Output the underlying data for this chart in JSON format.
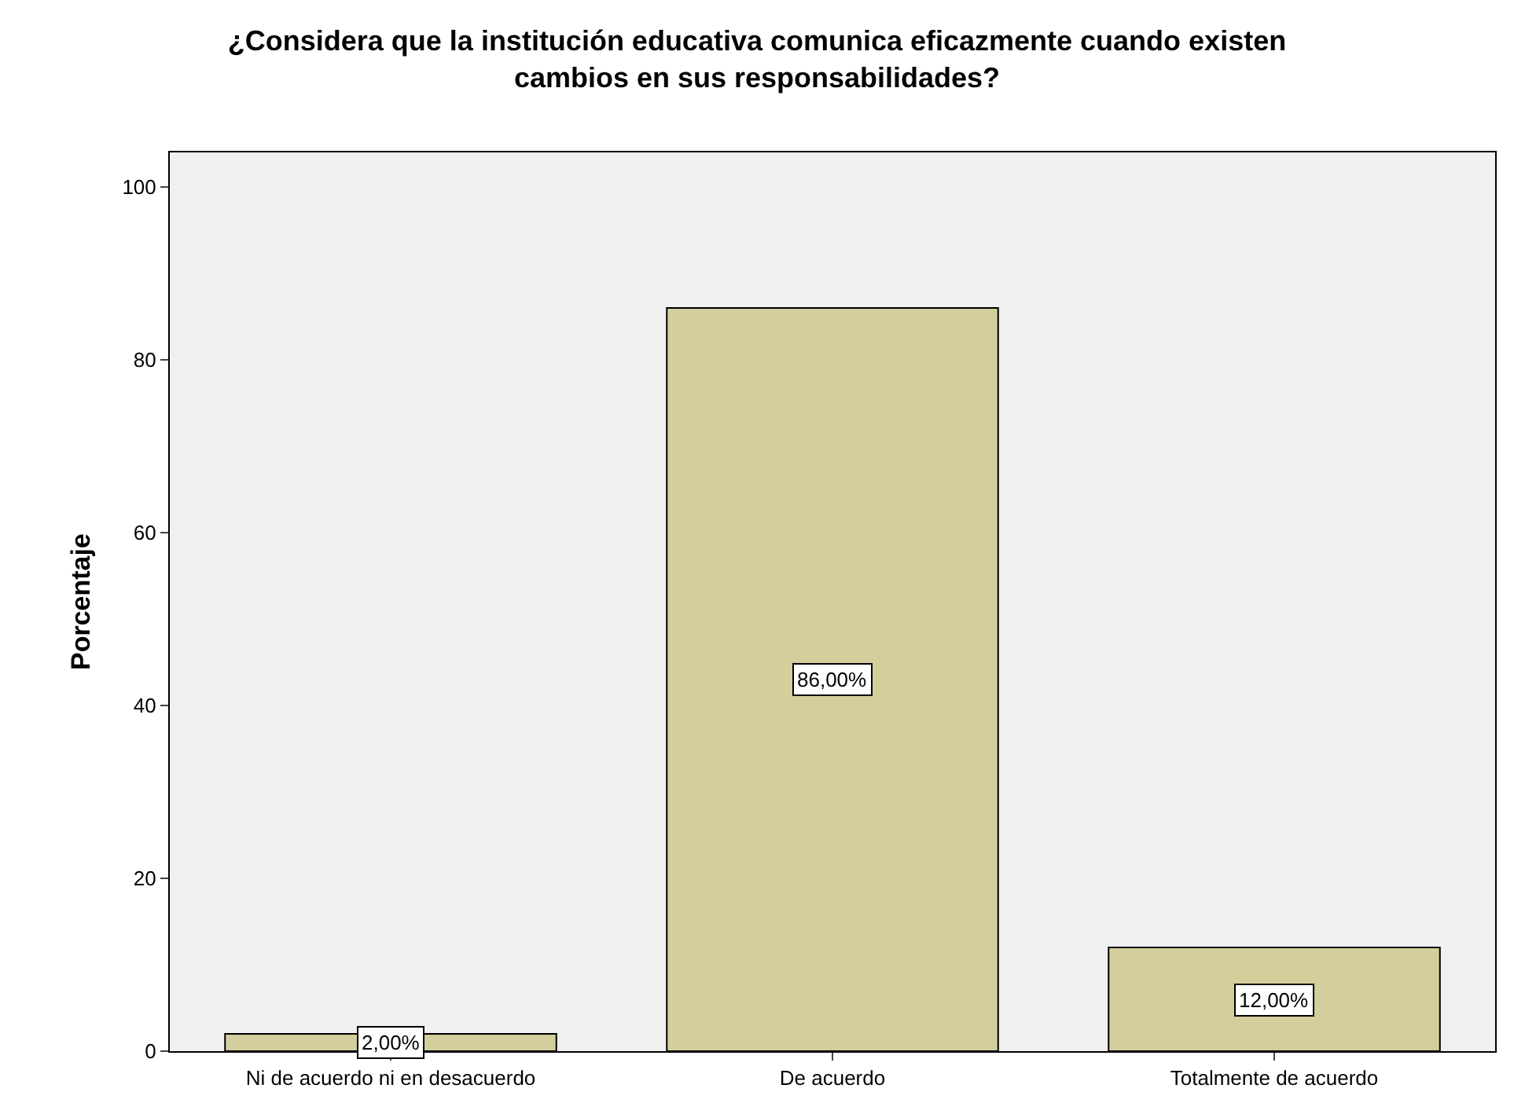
{
  "chart_data": {
    "type": "bar",
    "title": "¿Considera que la institución educativa comunica eficazmente cuando existen\ncambios en sus responsabilidades?",
    "ylabel": "Porcentaje",
    "categories": [
      "Ni de acuerdo ni en desacuerdo",
      "De acuerdo",
      "Totalmente de acuerdo"
    ],
    "values": [
      2,
      86,
      12
    ],
    "value_labels": [
      "2,00%",
      "86,00%",
      "12,00%"
    ],
    "color": "#d3ce9b",
    "ylim": [
      0,
      104
    ],
    "yticks": [
      0,
      20,
      40,
      60,
      80,
      100
    ],
    "grid": false,
    "legend": false
  }
}
